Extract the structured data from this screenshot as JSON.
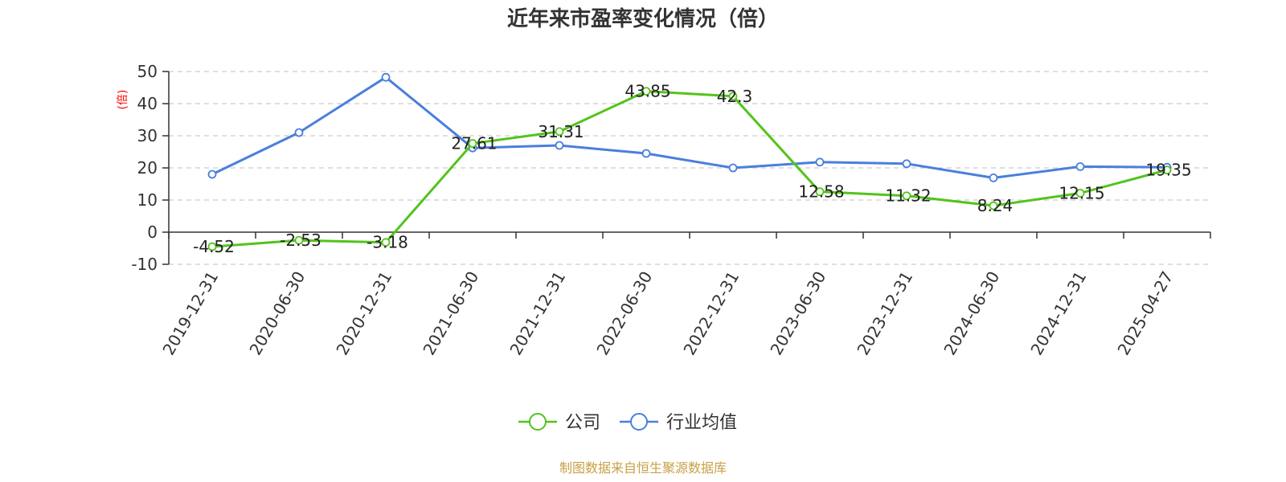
{
  "source_note": "制图数据来自恒生聚源数据库",
  "chart_data": {
    "type": "line",
    "title": "近年来市盈率变化情况（倍）",
    "ylabel": "(倍)",
    "xlabel": "",
    "ylim": [
      -10,
      50
    ],
    "yticks": [
      -10,
      0,
      10,
      20,
      30,
      40,
      50
    ],
    "grid": true,
    "legend_position": "bottom-center",
    "categories": [
      "2019-12-31",
      "2020-06-30",
      "2020-12-31",
      "2021-06-30",
      "2021-12-31",
      "2022-06-30",
      "2022-12-31",
      "2023-06-30",
      "2023-12-31",
      "2024-06-30",
      "2024-12-31",
      "2025-04-27"
    ],
    "series": [
      {
        "name": "公司",
        "color": "#52c41a",
        "values": [
          -4.52,
          -2.53,
          -3.18,
          27.61,
          31.31,
          43.85,
          42.3,
          12.58,
          11.32,
          8.24,
          12.15,
          19.35
        ],
        "labels": [
          "-4.52",
          "-2.53",
          "-3.18",
          "27.61",
          "31.31",
          "43.85",
          "42.3",
          "12.58",
          "11.32",
          "8.24",
          "12.15",
          "19.35"
        ]
      },
      {
        "name": "行业均值",
        "color": "#4a7fdc",
        "values": [
          18.0,
          31.0,
          48.2,
          26.2,
          27.0,
          24.5,
          20.0,
          21.8,
          21.3,
          16.9,
          20.4,
          20.2
        ]
      }
    ]
  }
}
